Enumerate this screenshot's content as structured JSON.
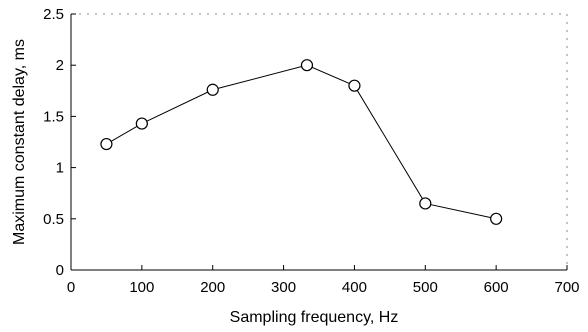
{
  "chart_data": {
    "type": "line",
    "title": "",
    "xlabel": "Sampling frequency, Hz",
    "ylabel": "Maximum constant delay, ms",
    "xlim": [
      0,
      700
    ],
    "ylim": [
      0,
      2.5
    ],
    "xticks": [
      0,
      100,
      200,
      300,
      400,
      500,
      600,
      700
    ],
    "yticks": [
      0,
      0.5,
      1,
      1.5,
      2,
      2.5
    ],
    "xtick_labels": [
      "0",
      "100",
      "200",
      "300",
      "400",
      "500",
      "600",
      "700"
    ],
    "ytick_labels": [
      "0",
      "0.5",
      "1",
      "1.5",
      "2",
      "2.5"
    ],
    "grid": false,
    "series": [
      {
        "marker": "circle",
        "color": "#000000",
        "x": [
          50,
          100,
          200,
          333,
          400,
          500,
          600
        ],
        "y": [
          1.23,
          1.43,
          1.76,
          2.0,
          1.8,
          0.65,
          0.5
        ]
      }
    ]
  }
}
